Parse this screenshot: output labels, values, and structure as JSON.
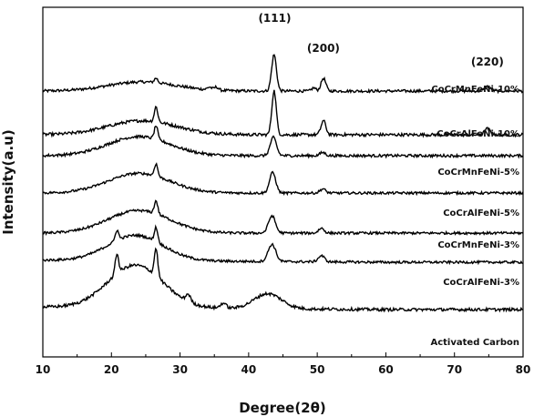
{
  "chart_data": {
    "type": "line",
    "xlabel": "Degree(2θ)",
    "ylabel": "Intensity(a.u)",
    "xlim": [
      10,
      80
    ],
    "x_ticks": [
      10,
      20,
      30,
      40,
      50,
      60,
      70,
      80
    ],
    "y_ticks": false,
    "grid": false,
    "stacked_offset": true,
    "line_color": "#000000",
    "peak_annotations": [
      {
        "label": "(111)",
        "x": 43.8
      },
      {
        "label": "(200)",
        "x": 50.9
      },
      {
        "label": "(220)",
        "x": 74.8
      }
    ],
    "series": [
      {
        "name": "CoCrMnFeNi-10%",
        "peaks": [
          [
            24.5,
            0.2,
            5.0
          ],
          [
            26.5,
            0.1,
            0.25
          ],
          [
            34.3,
            0.06,
            0.3
          ],
          [
            35.3,
            0.07,
            0.3
          ],
          [
            43.7,
            0.8,
            0.35
          ],
          [
            49.5,
            0.07,
            0.3
          ],
          [
            50.9,
            0.28,
            0.35
          ],
          [
            74.8,
            0.1,
            0.4
          ]
        ]
      },
      {
        "name": "CoCrAlFeNi-10%",
        "peaks": [
          [
            24.5,
            0.28,
            5.0
          ],
          [
            26.5,
            0.3,
            0.25
          ],
          [
            43.7,
            0.88,
            0.32
          ],
          [
            50.9,
            0.28,
            0.35
          ],
          [
            74.8,
            0.12,
            0.4
          ]
        ]
      },
      {
        "name": "CoCrMnFeNi-5%",
        "peaks": [
          [
            24.0,
            0.42,
            4.5
          ],
          [
            26.5,
            0.3,
            0.25
          ],
          [
            43.6,
            0.4,
            0.45
          ],
          [
            50.8,
            0.07,
            0.4
          ]
        ]
      },
      {
        "name": "CoCrAlFeNi-5%",
        "peaks": [
          [
            24.0,
            0.48,
            4.5
          ],
          [
            26.5,
            0.3,
            0.25
          ],
          [
            43.5,
            0.5,
            0.45
          ],
          [
            50.8,
            0.1,
            0.4
          ]
        ]
      },
      {
        "name": "CoCrMnFeNi-3%",
        "peaks": [
          [
            24.0,
            0.55,
            4.5
          ],
          [
            26.5,
            0.32,
            0.25
          ],
          [
            43.4,
            0.42,
            0.5
          ],
          [
            50.6,
            0.12,
            0.4
          ]
        ]
      },
      {
        "name": "CoCrAlFeNi-3%",
        "peaks": [
          [
            20.8,
            0.25,
            0.25
          ],
          [
            23.5,
            0.62,
            4.0
          ],
          [
            26.5,
            0.35,
            0.25
          ],
          [
            43.4,
            0.42,
            0.55
          ],
          [
            50.6,
            0.15,
            0.45
          ]
        ]
      },
      {
        "name": "Activated Carbon",
        "peaks": [
          [
            20.8,
            0.4,
            0.25
          ],
          [
            23.5,
            0.85,
            4.0
          ],
          [
            26.5,
            0.55,
            0.25
          ],
          [
            31.2,
            0.15,
            0.35
          ],
          [
            36.3,
            0.1,
            0.4
          ],
          [
            42.8,
            0.3,
            2.0
          ]
        ]
      }
    ]
  }
}
